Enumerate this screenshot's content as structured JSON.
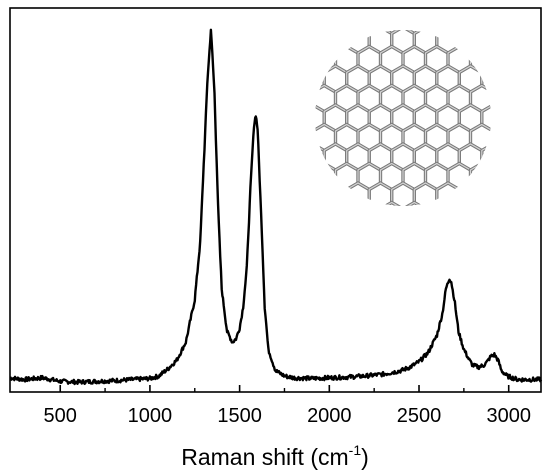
{
  "chart_data": {
    "type": "line",
    "title": "",
    "xlabel": "Raman shift (cm",
    "xlabel_sup": "-1",
    "xlabel_suffix": ")",
    "ylabel": "",
    "xlim": [
      220,
      3180
    ],
    "ylim": [
      -0.02,
      1.06
    ],
    "xticks": [
      500,
      1000,
      1500,
      2000,
      2500,
      3000
    ],
    "xtick_labels": [
      "500",
      "1000",
      "1500",
      "2000",
      "2500",
      "3000"
    ],
    "yticks_shown": false,
    "grid": false,
    "legend": "none",
    "inset": "carbon nanostructure (hexagonal lattice) illustration, top-right",
    "series": [
      {
        "color": "#000000",
        "x": [
          220,
          300,
          400,
          500,
          600,
          700,
          800,
          900,
          1000,
          1050,
          1100,
          1150,
          1200,
          1250,
          1280,
          1300,
          1320,
          1340,
          1360,
          1380,
          1400,
          1430,
          1460,
          1480,
          1500,
          1520,
          1540,
          1560,
          1580,
          1590,
          1600,
          1620,
          1640,
          1660,
          1700,
          1750,
          1800,
          1900,
          2000,
          2100,
          2200,
          2300,
          2400,
          2450,
          2500,
          2550,
          2600,
          2630,
          2650,
          2670,
          2680,
          2700,
          2720,
          2750,
          2780,
          2800,
          2830,
          2860,
          2880,
          2900,
          2920,
          2940,
          2960,
          2990,
          3050,
          3100,
          3180
        ],
        "y": [
          0.02,
          0.015,
          0.02,
          0.01,
          0.008,
          0.01,
          0.012,
          0.015,
          0.018,
          0.025,
          0.045,
          0.07,
          0.12,
          0.24,
          0.4,
          0.62,
          0.85,
          1.0,
          0.82,
          0.5,
          0.27,
          0.15,
          0.12,
          0.13,
          0.16,
          0.22,
          0.33,
          0.55,
          0.73,
          0.76,
          0.72,
          0.48,
          0.22,
          0.1,
          0.04,
          0.025,
          0.02,
          0.018,
          0.02,
          0.022,
          0.025,
          0.03,
          0.04,
          0.05,
          0.065,
          0.09,
          0.14,
          0.2,
          0.27,
          0.3,
          0.29,
          0.23,
          0.15,
          0.1,
          0.07,
          0.055,
          0.05,
          0.055,
          0.065,
          0.08,
          0.085,
          0.07,
          0.04,
          0.025,
          0.015,
          0.015,
          0.015
        ]
      }
    ]
  }
}
